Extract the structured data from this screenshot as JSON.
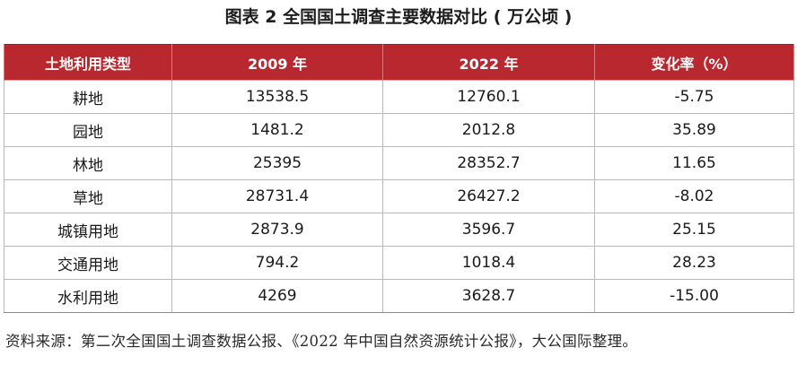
{
  "title": "图表 2  全国国土调查主要数据对比 ( 万公顷 )",
  "table": {
    "headers": [
      "土地利用类型",
      "2009 年",
      "2022 年",
      "变化率（%）"
    ],
    "rows": [
      [
        "耕地",
        "13538.5",
        "12760.1",
        "-5.75"
      ],
      [
        "园地",
        "1481.2",
        "2012.8",
        "35.89"
      ],
      [
        "林地",
        "25395",
        "28352.7",
        "11.65"
      ],
      [
        "草地",
        "28731.4",
        "26427.2",
        "-8.02"
      ],
      [
        "城镇用地",
        "2873.9",
        "3596.7",
        "25.15"
      ],
      [
        "交通用地",
        "794.2",
        "1018.4",
        "28.23"
      ],
      [
        "水利用地",
        "4269",
        "3628.7",
        "-15.00"
      ]
    ]
  },
  "source": "资料来源：第二次全国国土调查数据公报、《2022 年中国自然资源统计公报》，大公国际整理。",
  "colors": {
    "header_bg": "#b8282e",
    "header_text": "#ffffff",
    "grid": "#b9b9b9"
  }
}
